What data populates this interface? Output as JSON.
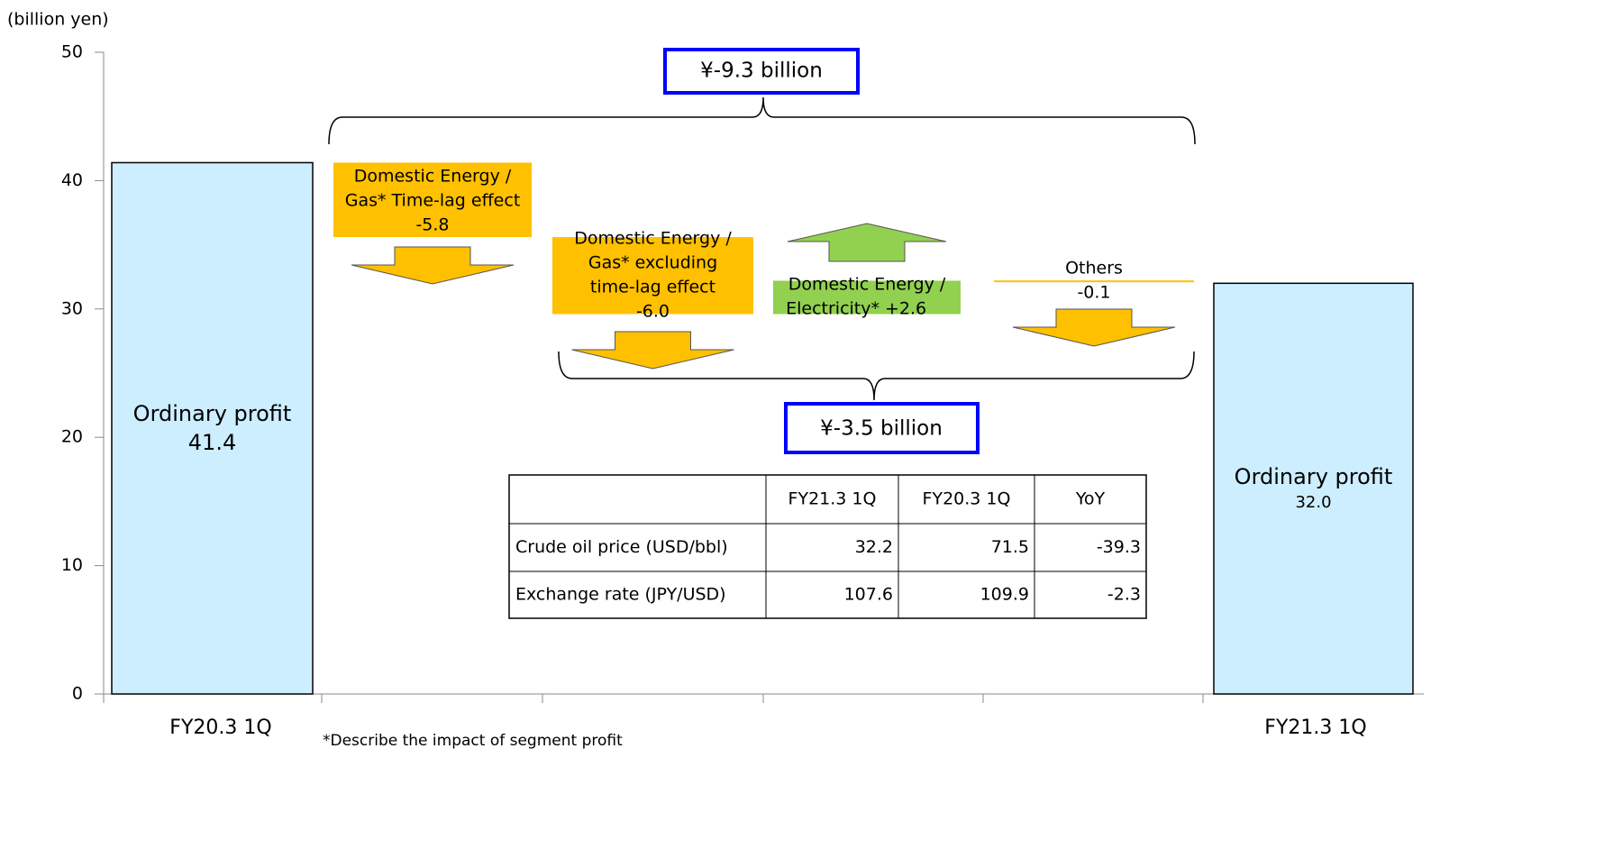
{
  "chart_data": {
    "type": "waterfall",
    "y_label": "(billion yen)",
    "ylim": [
      0,
      50
    ],
    "yticks": [
      0,
      10,
      20,
      30,
      40,
      50
    ],
    "categories": [
      "FY20.3 1Q",
      null,
      null,
      null,
      null,
      "FY21.3 1Q"
    ],
    "measure": [
      "total",
      "relative",
      "relative",
      "relative",
      "relative",
      "total"
    ],
    "values": [
      41.4,
      -5.8,
      -6,
      2.6,
      -0.1,
      32
    ],
    "value_labels": [
      "41.4",
      "-5.8",
      "-6.0",
      "+2.6",
      "-0.1",
      "32.0"
    ],
    "bar_labels": [
      [
        "Ordinary profit"
      ],
      [
        "Domestic Energy /",
        "Gas* Time-lag effect"
      ],
      [
        "Domestic Energy /",
        "Gas* excluding",
        "time-lag effect"
      ],
      [
        "Domestic Energy /",
        "Electricity*"
      ],
      [
        "Others"
      ],
      [
        "Ordinary profit"
      ]
    ],
    "colors": {
      "total": "#cceeff",
      "decrease": "#ffc000",
      "increase": "#92d050"
    },
    "annotations": [
      "¥-9.3 billion",
      "¥-3.5 billion"
    ],
    "footnote": "*Describe the impact of segment profit",
    "table": {
      "columns": [
        "FY21.3 1Q",
        "FY20.3 1Q",
        "YoY"
      ],
      "rows": [
        [
          "Crude oil price (USD/bbl)",
          "32.2",
          "71.5",
          "-39.3"
        ],
        [
          "Exchange rate (JPY/USD)",
          "107.6",
          "109.9",
          "-2.3"
        ]
      ]
    }
  }
}
